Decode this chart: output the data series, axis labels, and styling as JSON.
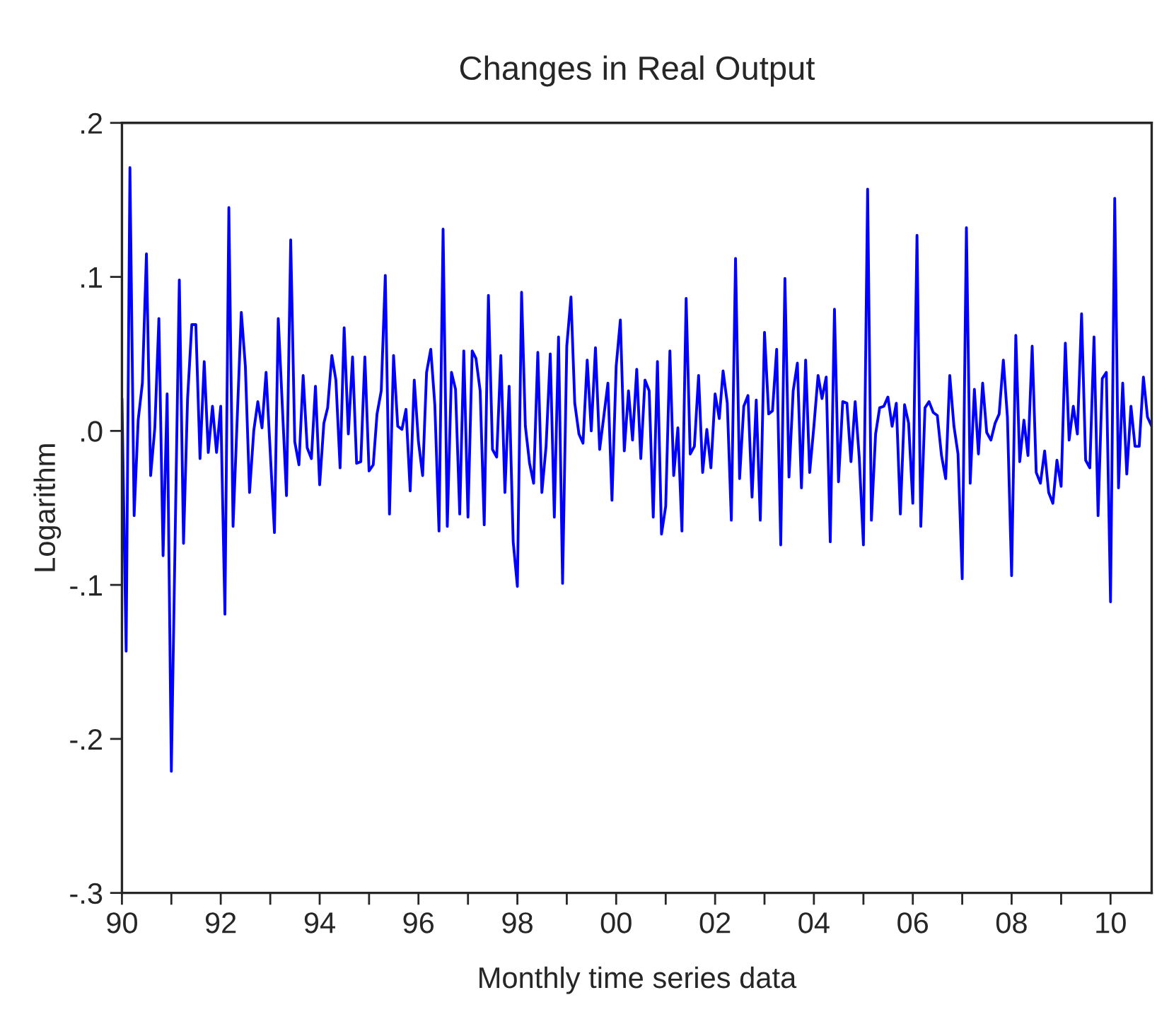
{
  "chart_data": {
    "type": "line",
    "title": "Changes in Real Output",
    "xlabel": "Monthly time series data",
    "ylabel": "Logarithm",
    "xlim": [
      "1990-01",
      "2010-11"
    ],
    "xticks": [
      {
        "value": "1990-01",
        "label": "90"
      },
      {
        "value": "1991-01",
        "label": null
      },
      {
        "value": "1992-01",
        "label": "92"
      },
      {
        "value": "1993-01",
        "label": null
      },
      {
        "value": "1994-01",
        "label": "94"
      },
      {
        "value": "1995-01",
        "label": null
      },
      {
        "value": "1996-01",
        "label": "96"
      },
      {
        "value": "1997-01",
        "label": null
      },
      {
        "value": "1998-01",
        "label": "98"
      },
      {
        "value": "1999-01",
        "label": null
      },
      {
        "value": "2000-01",
        "label": "00"
      },
      {
        "value": "2001-01",
        "label": null
      },
      {
        "value": "2002-01",
        "label": "02"
      },
      {
        "value": "2003-01",
        "label": null
      },
      {
        "value": "2004-01",
        "label": "04"
      },
      {
        "value": "2005-01",
        "label": null
      },
      {
        "value": "2006-01",
        "label": "06"
      },
      {
        "value": "2007-01",
        "label": null
      },
      {
        "value": "2008-01",
        "label": "08"
      },
      {
        "value": "2009-01",
        "label": null
      },
      {
        "value": "2010-01",
        "label": "10"
      }
    ],
    "ylim": [
      -0.3,
      0.2
    ],
    "yticks": [
      {
        "value": -0.3,
        "label": "-.3"
      },
      {
        "value": -0.2,
        "label": "-.2"
      },
      {
        "value": -0.1,
        "label": "-.1"
      },
      {
        "value": 0.0,
        "label": ".0"
      },
      {
        "value": 0.1,
        "label": ".1"
      },
      {
        "value": 0.2,
        "label": ".2"
      }
    ],
    "grid": false,
    "legend": false,
    "marker": "none",
    "line_style": "solid",
    "series": [
      {
        "color": "#0000ff",
        "x": [
          "1990-01",
          "1990-02",
          "1990-03",
          "1990-04",
          "1990-05",
          "1990-06",
          "1990-07",
          "1990-08",
          "1990-09",
          "1990-10",
          "1990-11",
          "1990-12",
          "1991-01",
          "1991-03",
          "1991-04",
          "1991-05",
          "1991-06",
          "1991-07",
          "1991-08",
          "1991-09",
          "1991-10",
          "1991-11",
          "1991-12",
          "1992-01",
          "1992-02",
          "1992-03",
          "1992-04",
          "1992-06",
          "1992-07",
          "1992-08",
          "1992-09",
          "1992-10",
          "1992-11",
          "1992-12",
          "1993-02",
          "1993-03",
          "1993-05",
          "1993-06",
          "1993-07",
          "1993-08",
          "1993-09",
          "1993-10",
          "1993-11",
          "1993-12",
          "1994-01",
          "1994-02",
          "1994-03",
          "1994-04",
          "1994-05",
          "1994-06",
          "1994-07",
          "1994-08",
          "1994-09",
          "1994-10",
          "1994-11",
          "1994-12",
          "1995-01",
          "1995-02",
          "1995-03",
          "1995-04",
          "1995-05",
          "1995-06",
          "1995-07",
          "1995-08",
          "1995-09",
          "1995-10",
          "1995-11",
          "1995-12",
          "1996-01",
          "1996-02",
          "1996-03",
          "1996-04",
          "1996-05",
          "1996-06",
          "1996-07",
          "1996-08",
          "1996-09",
          "1996-10",
          "1996-11",
          "1996-12",
          "1997-01",
          "1997-02",
          "1997-03",
          "1997-04",
          "1997-05",
          "1997-06",
          "1997-07",
          "1997-08",
          "1997-09",
          "1997-10",
          "1997-11",
          "1997-12",
          "1998-01",
          "1998-02",
          "1998-03",
          "1998-04",
          "1998-05",
          "1998-06",
          "1998-07",
          "1998-08",
          "1998-09",
          "1998-10",
          "1998-11",
          "1998-12",
          "1999-01",
          "1999-02",
          "1999-03",
          "1999-04",
          "1999-05",
          "1999-06",
          "1999-07",
          "1999-08",
          "1999-09",
          "1999-10",
          "1999-11",
          "1999-12",
          "2000-01",
          "2000-02",
          "2000-03",
          "2000-04",
          "2000-05",
          "2000-06",
          "2000-07",
          "2000-08",
          "2000-09",
          "2000-10",
          "2000-11",
          "2000-12",
          "2001-01",
          "2001-02",
          "2001-03",
          "2001-04",
          "2001-05",
          "2001-06",
          "2001-07",
          "2001-08",
          "2001-09",
          "2001-10",
          "2001-11",
          "2001-12",
          "2002-01",
          "2002-02",
          "2002-03",
          "2002-04",
          "2002-05",
          "2002-06",
          "2002-07",
          "2002-08",
          "2002-09",
          "2002-10",
          "2002-11",
          "2002-12",
          "2003-01",
          "2003-02",
          "2003-03",
          "2003-04",
          "2003-05",
          "2003-06",
          "2003-07",
          "2003-08",
          "2003-09",
          "2003-10",
          "2003-11",
          "2003-12",
          "2004-01",
          "2004-02",
          "2004-03",
          "2004-04",
          "2004-05",
          "2004-06",
          "2004-07",
          "2004-08",
          "2004-09",
          "2004-10",
          "2004-11",
          "2004-12",
          "2005-01",
          "2005-02",
          "2005-03",
          "2005-04",
          "2005-05",
          "2005-06",
          "2005-07",
          "2005-08",
          "2005-09",
          "2005-10",
          "2005-11",
          "2005-12",
          "2006-01",
          "2006-02",
          "2006-03",
          "2006-04",
          "2006-05",
          "2006-06",
          "2006-07",
          "2006-08",
          "2006-09",
          "2006-10",
          "2006-11",
          "2006-12",
          "2007-01",
          "2007-02",
          "2007-03",
          "2007-04",
          "2007-05",
          "2007-06",
          "2007-07",
          "2007-08",
          "2007-09",
          "2007-10",
          "2007-11",
          "2007-12",
          "2008-01",
          "2008-02",
          "2008-03",
          "2008-04",
          "2008-05",
          "2008-06",
          "2008-07",
          "2008-08",
          "2008-09",
          "2008-10",
          "2008-11",
          "2008-12",
          "2009-01",
          "2009-02",
          "2009-03",
          "2009-04",
          "2009-05",
          "2009-06",
          "2009-07",
          "2009-08",
          "2009-09",
          "2009-10",
          "2009-11",
          "2009-12",
          "2010-01",
          "2010-02",
          "2010-03",
          "2010-04",
          "2010-05",
          "2010-06",
          "2010-07",
          "2010-08",
          "2010-09",
          "2010-10",
          "2010-11"
        ],
        "values": [
          0.021,
          -0.143,
          0.171,
          -0.055,
          0.007,
          0.031,
          0.115,
          -0.029,
          0.002,
          0.073,
          -0.081,
          0.024,
          -0.221,
          0.098,
          -0.073,
          0.021,
          0.069,
          0.069,
          -0.018,
          0.045,
          -0.014,
          0.016,
          -0.014,
          0.016,
          -0.119,
          0.145,
          -0.062,
          0.077,
          0.042,
          -0.04,
          0.0,
          0.019,
          0.002,
          0.038,
          -0.066,
          0.073,
          -0.042,
          0.124,
          -0.007,
          -0.022,
          0.036,
          -0.011,
          -0.018,
          0.029,
          -0.035,
          0.005,
          0.015,
          0.049,
          0.033,
          -0.024,
          0.067,
          -0.002,
          0.048,
          -0.021,
          -0.02,
          0.048,
          -0.026,
          -0.022,
          0.011,
          0.026,
          0.101,
          -0.054,
          0.049,
          0.003,
          0.001,
          0.014,
          -0.039,
          0.033,
          -0.007,
          -0.029,
          0.038,
          0.053,
          0.017,
          -0.065,
          0.131,
          -0.062,
          0.038,
          0.027,
          -0.054,
          0.052,
          -0.056,
          0.052,
          0.047,
          0.026,
          -0.061,
          0.088,
          -0.012,
          -0.017,
          0.049,
          -0.04,
          0.029,
          -0.072,
          -0.101,
          0.09,
          0.003,
          -0.021,
          -0.034,
          0.051,
          -0.04,
          -0.01,
          0.05,
          -0.056,
          0.061,
          -0.099,
          0.055,
          0.087,
          0.018,
          -0.002,
          -0.008,
          0.046,
          0.0,
          0.054,
          -0.012,
          0.009,
          0.031,
          -0.045,
          0.042,
          0.072,
          -0.013,
          0.026,
          -0.006,
          0.04,
          -0.018,
          0.033,
          0.026,
          -0.056,
          0.045,
          -0.067,
          -0.049,
          0.052,
          -0.029,
          0.002,
          -0.065,
          0.086,
          -0.015,
          -0.01,
          0.036,
          -0.027,
          0.001,
          -0.024,
          0.024,
          0.008,
          0.039,
          0.018,
          -0.058,
          0.112,
          -0.031,
          0.016,
          0.023,
          -0.043,
          0.02,
          -0.058,
          0.064,
          0.011,
          0.013,
          0.053,
          -0.074,
          0.099,
          -0.03,
          0.026,
          0.044,
          -0.037,
          0.046,
          -0.027,
          0.003,
          0.036,
          0.021,
          0.035,
          -0.072,
          0.079,
          -0.033,
          0.019,
          0.018,
          -0.02,
          0.019,
          -0.017,
          -0.074,
          0.157,
          -0.058,
          -0.002,
          0.015,
          0.016,
          0.022,
          0.003,
          0.018,
          -0.054,
          0.017,
          0.005,
          -0.047,
          0.127,
          -0.062,
          0.015,
          0.019,
          0.012,
          0.01,
          -0.016,
          -0.031,
          0.036,
          0.003,
          -0.015,
          -0.096,
          0.132,
          -0.034,
          0.027,
          -0.015,
          0.031,
          -0.001,
          -0.006,
          0.005,
          0.011,
          0.046,
          0.009,
          -0.094,
          0.062,
          -0.02,
          0.007,
          -0.016,
          0.055,
          -0.027,
          -0.034,
          -0.013,
          -0.04,
          -0.047,
          -0.019,
          -0.036,
          0.057,
          -0.006,
          0.016,
          -0.002,
          0.076,
          -0.019,
          -0.024,
          0.061,
          -0.055,
          0.034,
          0.038,
          -0.111,
          0.151,
          -0.037,
          0.031,
          -0.028,
          0.016,
          -0.01,
          -0.01,
          0.035,
          0.009,
          0.003
        ]
      }
    ]
  }
}
